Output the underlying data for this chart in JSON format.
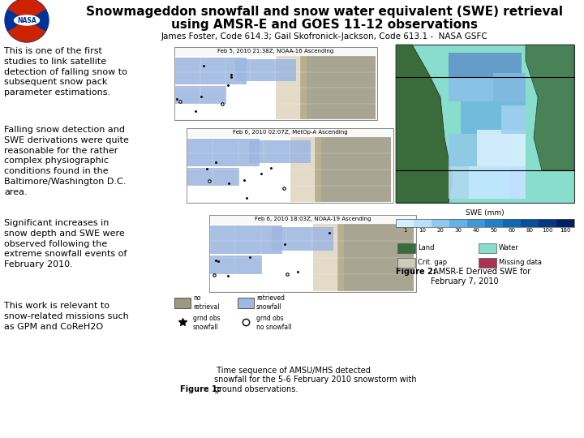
{
  "title_line1": "Snowmageddon snowfall and snow water equivalent (SWE) retrieval",
  "title_line2": "using AMSR-E and GOES 11-12 observations",
  "subtitle": "James Foster, Code 614.3; Gail Skofronick-Jackson, Code 613.1 -  NASA GSFC",
  "bg_color": "#ffffff",
  "text_color": "#000000",
  "title_fontsize": 11,
  "subtitle_fontsize": 7.5,
  "body_fontsize": 8,
  "para1": "This is one of the first\nstudies to link satellite\ndetection of falling snow to\nsubsequent snow pack\nparameter estimations.",
  "para2": "Falling snow detection and\nSWE derivations were quite\nreasonable for the rather\ncomplex physiographic\nconditions found in the\nBaltimore/Washington D.C.\narea.",
  "para3": "Significant increases in\nsnow depth and SWE were\nobserved following the\nextreme snowfall events of\nFebruary 2010.",
  "para4": "This work is relevant to\nsnow-related missions such\nas GPM and CoReH2O",
  "fig1_caption_bold": "Figure 1:",
  "fig1_caption_rest": " Time sequence of AMSU/MHS detected\nsnowfall for the 5-6 February 2010 snowstorm with\nground observations.",
  "fig2_caption_bold": "Figure 2:",
  "fig2_caption_rest": " AMSR-E Derived SWE for\nFebruary 7, 2010",
  "map1_title": "Feb 5, 2010 21:38Z, NOAA-16 Ascending",
  "map2_title": "Feb 6, 2010 02:07Z, MetOp-A Ascending",
  "map3_title": "Feb 6, 2010 18:03Z, NOAA-19 Ascending",
  "swe_label": "SWE (mm)",
  "swe_ticks": [
    "1",
    "10",
    "20",
    "30",
    "40",
    "50",
    "60",
    "80",
    "100",
    "180"
  ],
  "swe_colors": [
    "#d4eeff",
    "#b8e0ff",
    "#8ec8f0",
    "#64b0e8",
    "#4098d8",
    "#2080c8",
    "#1068b0",
    "#085098",
    "#043880",
    "#022060"
  ],
  "legend2_land": "#3a6b3a",
  "legend2_water": "#88ddcc",
  "legend2_crit_gap": "#ccccbb",
  "legend2_missing": "#aa3355",
  "map_blue": "#a0b8e0",
  "map_gray": "#9a9880",
  "map_tan": "#c8b890",
  "map_white": "#ffffff"
}
